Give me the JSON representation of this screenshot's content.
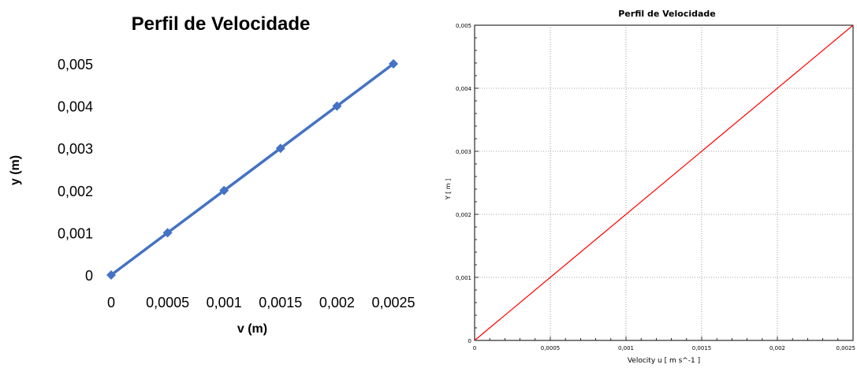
{
  "chart_data": [
    {
      "type": "line",
      "title": "Perfil de Velocidade",
      "xlabel": "v (m)",
      "ylabel": "y (m)",
      "x": [
        0,
        0.0005,
        0.001,
        0.0015,
        0.002,
        0.0025
      ],
      "series": [
        {
          "name": "",
          "values": [
            0,
            0.001,
            0.002,
            0.003,
            0.004,
            0.005
          ]
        }
      ],
      "x_ticks": [
        "0",
        "0,0005",
        "0,001",
        "0,0015",
        "0,002",
        "0,0025"
      ],
      "y_ticks": [
        "0",
        "0,001",
        "0,002",
        "0,003",
        "0,004",
        "0,005"
      ],
      "xlim": [
        0,
        0.0025
      ],
      "ylim": [
        0,
        0.005
      ],
      "grid": false,
      "legend": "none",
      "line_color": "#4472C4",
      "marker": "diamond"
    },
    {
      "type": "line",
      "title": "Perfil de Velocidade",
      "xlabel": "Velocity u [ m s^-1 ]",
      "ylabel": "Y [ m ]",
      "x": [
        0,
        0.0025
      ],
      "series": [
        {
          "name": "",
          "values": [
            0,
            0.005
          ]
        }
      ],
      "x_ticks": [
        "0",
        "0,0005",
        "0,001",
        "0,0015",
        "0,002",
        "0,0025"
      ],
      "y_ticks": [
        "0",
        "0,001",
        "0,002",
        "0,003",
        "0,004",
        "0,005"
      ],
      "xlim": [
        0,
        0.0025
      ],
      "ylim": [
        0,
        0.005
      ],
      "grid": true,
      "legend": "none",
      "line_color": "#ff0000"
    }
  ]
}
